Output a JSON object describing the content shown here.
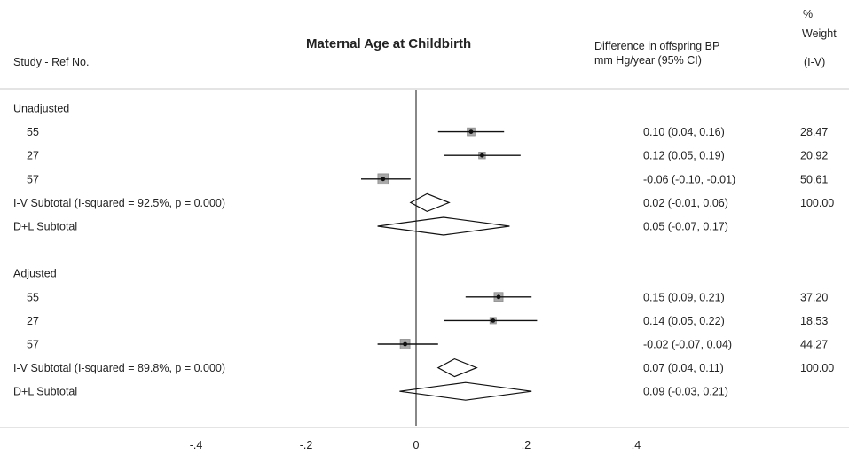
{
  "chart_data": {
    "type": "forest",
    "title": "Maternal Age at Childbirth",
    "headers": {
      "study": "Study - Ref No.",
      "effect_line1": "Difference in offspring BP",
      "effect_line2": "mm Hg/year (95% CI)",
      "weight_line1": "%",
      "weight_line2": "Weight",
      "weight_line3": "(I-V)"
    },
    "xlim": [
      -0.55,
      0.55
    ],
    "null_line": 0,
    "ticks": [
      {
        "value": -0.4,
        "label": "-.4"
      },
      {
        "value": -0.2,
        "label": "-.2"
      },
      {
        "value": 0,
        "label": "0"
      },
      {
        "value": 0.2,
        "label": ".2"
      },
      {
        "value": 0.4,
        "label": ".4"
      }
    ],
    "rows": [
      {
        "kind": "group",
        "label": "Unadjusted"
      },
      {
        "kind": "study",
        "label": "55",
        "est": 0.1,
        "lo": 0.04,
        "hi": 0.16,
        "weight": 28.47,
        "ci_text": "0.10 (0.04, 0.16)",
        "weight_text": "28.47"
      },
      {
        "kind": "study",
        "label": "27",
        "est": 0.12,
        "lo": 0.05,
        "hi": 0.19,
        "weight": 20.92,
        "ci_text": "0.12 (0.05, 0.19)",
        "weight_text": "20.92"
      },
      {
        "kind": "study",
        "label": "57",
        "est": -0.06,
        "lo": -0.1,
        "hi": -0.01,
        "weight": 50.61,
        "ci_text": "-0.06 (-0.10, -0.01)",
        "weight_text": "50.61"
      },
      {
        "kind": "subtotal",
        "label": "I-V Subtotal  (I-squared = 92.5%, p = 0.000)",
        "est": 0.02,
        "lo": -0.01,
        "hi": 0.06,
        "ci_text": "0.02 (-0.01, 0.06)",
        "weight_text": "100.00"
      },
      {
        "kind": "subtotal",
        "label": "D+L Subtotal",
        "est": 0.05,
        "lo": -0.07,
        "hi": 0.17,
        "ci_text": "0.05 (-0.07, 0.17)",
        "weight_text": ""
      },
      {
        "kind": "spacer"
      },
      {
        "kind": "group",
        "label": "Adjusted"
      },
      {
        "kind": "study",
        "label": "55",
        "est": 0.15,
        "lo": 0.09,
        "hi": 0.21,
        "weight": 37.2,
        "ci_text": "0.15 (0.09, 0.21)",
        "weight_text": "37.20"
      },
      {
        "kind": "study",
        "label": "27",
        "est": 0.14,
        "lo": 0.05,
        "hi": 0.22,
        "weight": 18.53,
        "ci_text": "0.14 (0.05, 0.22)",
        "weight_text": "18.53"
      },
      {
        "kind": "study",
        "label": "57",
        "est": -0.02,
        "lo": -0.07,
        "hi": 0.04,
        "weight": 44.27,
        "ci_text": "-0.02 (-0.07, 0.04)",
        "weight_text": "44.27"
      },
      {
        "kind": "subtotal",
        "label": "I-V Subtotal  (I-squared = 89.8%, p = 0.000)",
        "est": 0.07,
        "lo": 0.04,
        "hi": 0.11,
        "ci_text": "0.07 (0.04, 0.11)",
        "weight_text": "100.00"
      },
      {
        "kind": "subtotal",
        "label": "D+L Subtotal",
        "est": 0.09,
        "lo": -0.03,
        "hi": 0.21,
        "ci_text": "0.09 (-0.03, 0.21)",
        "weight_text": ""
      }
    ],
    "colors": {
      "line": "#111111",
      "box_fill": "#a9a9a9",
      "box_stroke": "#8c8c8c",
      "divider": "#c8c8c8"
    }
  }
}
